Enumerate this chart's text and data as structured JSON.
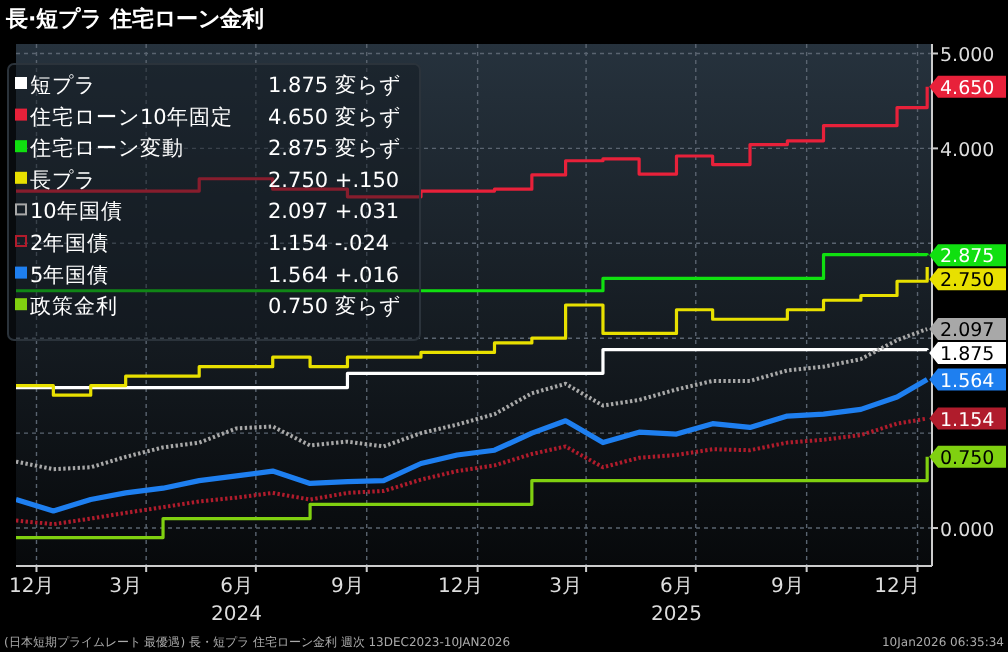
{
  "chart_data": {
    "type": "line",
    "title": "長·短プラ 住宅ローン金利",
    "x": [
      "2023-12-15",
      "2024-01-15",
      "2024-02-15",
      "2024-03-15",
      "2024-04-15",
      "2024-05-15",
      "2024-06-15",
      "2024-07-15",
      "2024-08-15",
      "2024-09-15",
      "2024-10-15",
      "2024-11-15",
      "2024-12-15",
      "2025-01-15",
      "2025-02-15",
      "2025-03-15",
      "2025-04-15",
      "2025-05-15",
      "2025-06-15",
      "2025-07-15",
      "2025-08-15",
      "2025-09-15",
      "2025-10-15",
      "2025-11-15",
      "2025-12-15",
      "2026-01-09"
    ],
    "xlim": [
      "2023-12-15",
      "2026-01-13"
    ],
    "xticks": [
      {
        "value": "2023-12-28",
        "label": "12月"
      },
      {
        "value": "2024-03-15",
        "label": "3月"
      },
      {
        "value": "2024-06-15",
        "label": "6月\n2024"
      },
      {
        "value": "2024-09-15",
        "label": "9月"
      },
      {
        "value": "2024-12-18",
        "label": "12月"
      },
      {
        "value": "2025-03-15",
        "label": "3月"
      },
      {
        "value": "2025-06-15",
        "label": "6月\n2025"
      },
      {
        "value": "2025-09-15",
        "label": "9月"
      },
      {
        "value": "2025-12-15",
        "label": "12月"
      },
      {
        "value": "2024-01-01",
        "label": null
      },
      {
        "value": "2024-04-01",
        "label": null
      },
      {
        "value": "2024-07-01",
        "label": null
      },
      {
        "value": "2024-10-01",
        "label": null
      },
      {
        "value": "2025-01-01",
        "label": null
      },
      {
        "value": "2025-04-01",
        "label": null
      },
      {
        "value": "2025-07-01",
        "label": null
      },
      {
        "value": "2025-10-01",
        "label": null
      },
      {
        "value": "2026-01-01",
        "label": null
      }
    ],
    "ylim": [
      -0.4,
      5.1
    ],
    "yticks": [
      {
        "value": 0,
        "label": "0.000"
      },
      {
        "value": 1,
        "label": null
      },
      {
        "value": 2,
        "label": null
      },
      {
        "value": 3,
        "label": null
      },
      {
        "value": 4,
        "label": "4.000"
      },
      {
        "value": 5,
        "label": "5.000"
      }
    ],
    "grid": true,
    "legend": "top left",
    "series": [
      {
        "name": "短プラ",
        "color": "#ffffff",
        "type": "step",
        "values": [
          1.48,
          1.48,
          1.48,
          1.48,
          1.48,
          1.48,
          1.48,
          1.48,
          1.48,
          1.63,
          1.63,
          1.63,
          1.63,
          1.63,
          1.63,
          1.63,
          1.88,
          1.88,
          1.88,
          1.88,
          1.88,
          1.88,
          1.88,
          1.88,
          1.88,
          1.875
        ],
        "value_labels": [
          null,
          null,
          null,
          null,
          null,
          null,
          null,
          null,
          null,
          null,
          null,
          null,
          null,
          null,
          null,
          null,
          null,
          null,
          null,
          null,
          null,
          null,
          null,
          null,
          null,
          "1.875"
        ]
      },
      {
        "name": "住宅ローン10年固定",
        "color": "#e8213a",
        "type": "step",
        "values": [
          3.55,
          3.55,
          3.55,
          3.55,
          3.55,
          3.68,
          3.68,
          3.57,
          3.57,
          3.49,
          3.49,
          3.55,
          3.55,
          3.57,
          3.72,
          3.87,
          3.89,
          3.73,
          3.92,
          3.83,
          4.04,
          4.08,
          4.24,
          4.24,
          4.43,
          4.65
        ],
        "value_labels": [
          null,
          null,
          null,
          null,
          null,
          null,
          null,
          null,
          null,
          null,
          null,
          null,
          null,
          null,
          null,
          null,
          null,
          null,
          null,
          null,
          null,
          null,
          null,
          null,
          null,
          "4.650"
        ]
      },
      {
        "name": "住宅ローン変動",
        "color": "#10e010",
        "type": "step",
        "values": [
          2.5,
          2.5,
          2.5,
          2.5,
          2.5,
          2.5,
          2.5,
          2.5,
          2.5,
          2.5,
          2.5,
          2.5,
          2.5,
          2.5,
          2.5,
          2.5,
          2.63,
          2.63,
          2.63,
          2.63,
          2.63,
          2.63,
          2.88,
          2.88,
          2.88,
          2.875
        ],
        "value_labels": [
          null,
          null,
          null,
          null,
          null,
          null,
          null,
          null,
          null,
          null,
          null,
          null,
          null,
          null,
          null,
          null,
          null,
          null,
          null,
          null,
          null,
          null,
          null,
          null,
          null,
          "2.875"
        ]
      },
      {
        "name": "長プラ",
        "color": "#e8e000",
        "type": "step",
        "values": [
          1.5,
          1.4,
          1.5,
          1.6,
          1.6,
          1.7,
          1.7,
          1.8,
          1.7,
          1.8,
          1.8,
          1.85,
          1.85,
          1.95,
          2.0,
          2.35,
          2.05,
          2.05,
          2.3,
          2.2,
          2.2,
          2.3,
          2.4,
          2.45,
          2.6,
          2.75
        ],
        "value_labels": [
          null,
          null,
          null,
          null,
          null,
          null,
          null,
          null,
          null,
          null,
          null,
          null,
          null,
          null,
          null,
          null,
          null,
          null,
          null,
          null,
          null,
          null,
          null,
          null,
          null,
          "2.750"
        ]
      },
      {
        "name": "10年国債",
        "color": "#a8a8a8",
        "line_style": "dotted",
        "values": [
          0.7,
          0.62,
          0.64,
          0.75,
          0.85,
          0.9,
          1.05,
          1.07,
          0.87,
          0.91,
          0.86,
          1.0,
          1.09,
          1.2,
          1.42,
          1.52,
          1.29,
          1.35,
          1.46,
          1.55,
          1.55,
          1.66,
          1.7,
          1.78,
          1.98,
          2.097
        ],
        "value_labels": [
          null,
          null,
          null,
          null,
          null,
          null,
          null,
          null,
          null,
          null,
          null,
          null,
          null,
          null,
          null,
          null,
          null,
          null,
          null,
          null,
          null,
          null,
          null,
          null,
          null,
          "2.097"
        ]
      },
      {
        "name": "2年国債",
        "color": "#b01c2c",
        "line_style": "dotted",
        "values": [
          0.08,
          0.04,
          0.1,
          0.16,
          0.22,
          0.28,
          0.32,
          0.37,
          0.3,
          0.37,
          0.39,
          0.51,
          0.6,
          0.66,
          0.78,
          0.86,
          0.64,
          0.74,
          0.77,
          0.83,
          0.82,
          0.9,
          0.93,
          0.98,
          1.1,
          1.154
        ],
        "value_labels": [
          null,
          null,
          null,
          null,
          null,
          null,
          null,
          null,
          null,
          null,
          null,
          null,
          null,
          null,
          null,
          null,
          null,
          null,
          null,
          null,
          null,
          null,
          null,
          null,
          null,
          "1.154"
        ]
      },
      {
        "name": "5年国債",
        "color": "#1e7ff0",
        "values": [
          0.3,
          0.18,
          0.3,
          0.37,
          0.42,
          0.5,
          0.55,
          0.6,
          0.47,
          0.49,
          0.5,
          0.68,
          0.77,
          0.82,
          1.0,
          1.13,
          0.9,
          1.01,
          0.99,
          1.1,
          1.06,
          1.18,
          1.2,
          1.25,
          1.38,
          1.564
        ],
        "value_labels": [
          null,
          null,
          null,
          null,
          null,
          null,
          null,
          null,
          null,
          null,
          null,
          null,
          null,
          null,
          null,
          null,
          null,
          null,
          null,
          null,
          null,
          null,
          null,
          null,
          null,
          "1.564"
        ]
      },
      {
        "name": "政策金利",
        "color": "#80d010",
        "type": "step",
        "values": [
          -0.1,
          -0.1,
          -0.1,
          -0.1,
          0.1,
          0.1,
          0.1,
          0.1,
          0.25,
          0.25,
          0.25,
          0.25,
          0.25,
          0.25,
          0.5,
          0.5,
          0.5,
          0.5,
          0.5,
          0.5,
          0.5,
          0.5,
          0.5,
          0.5,
          0.5,
          0.75
        ],
        "value_labels": [
          null,
          null,
          null,
          null,
          null,
          null,
          null,
          null,
          null,
          null,
          null,
          null,
          null,
          null,
          null,
          null,
          null,
          null,
          null,
          null,
          null,
          null,
          null,
          null,
          null,
          "0.750"
        ]
      }
    ],
    "annotations": [
      "1.875 変らず",
      "4.650 変らず",
      "2.875 変らず",
      "2.750 +.150",
      "2.097 +.031",
      "1.154 -.024",
      "1.564 +.016",
      "0.750 変らず",
      "(日本短期プライムレート 最優遇) 長・短プラ 住宅ローン金利 週次 13DEC2023-10JAN2026",
      "10Jan2026 06:35:34"
    ]
  }
}
